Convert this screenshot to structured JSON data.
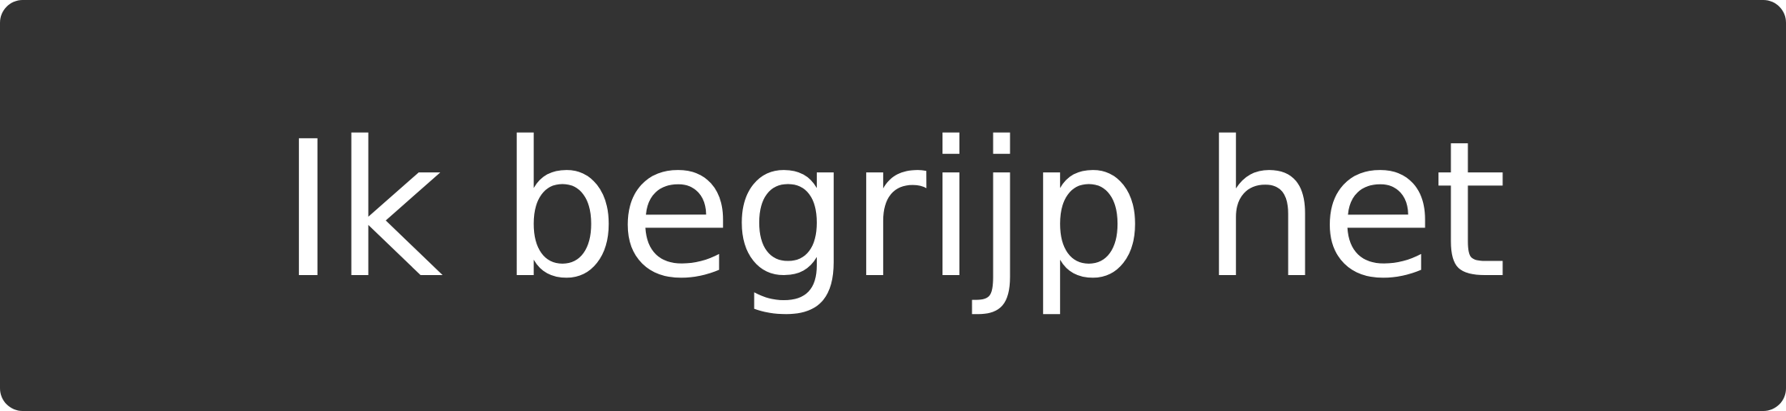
{
  "button": {
    "label": "Ik begrijp het",
    "background_color": "#333333",
    "text_color": "#ffffff"
  }
}
